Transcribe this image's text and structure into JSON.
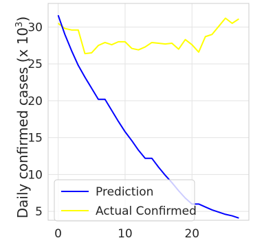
{
  "chart_data": {
    "type": "line",
    "title": "",
    "xlabel": "",
    "ylabel": "Daily confirmed cases (x 10",
    "ylabel_superscript": "3",
    "ylabel_suffix": ")",
    "xlim": [
      -1.5,
      28.5
    ],
    "ylim": [
      3.8,
      33.2
    ],
    "xticks": [
      0,
      10,
      20
    ],
    "xtick_labels": [
      "0",
      "10",
      "20"
    ],
    "yticks": [
      5,
      10,
      15,
      20,
      25,
      30
    ],
    "ytick_labels": [
      "5",
      "10",
      "15",
      "20",
      "25",
      "30"
    ],
    "grid": true,
    "legend_position": "lower-left",
    "series": [
      {
        "name": "Prediction",
        "color": "#0000ff",
        "x": [
          0,
          1,
          2,
          3,
          4,
          5,
          6,
          7,
          8,
          9,
          10,
          11,
          12,
          13,
          14,
          15,
          16,
          17,
          18,
          19,
          20,
          21,
          22,
          23,
          24,
          25,
          26,
          27
        ],
        "y": [
          31.6,
          29.0,
          26.8,
          24.8,
          23.2,
          21.7,
          20.2,
          20.2,
          18.7,
          17.2,
          15.8,
          14.6,
          13.3,
          12.2,
          12.2,
          11.0,
          9.9,
          8.9,
          7.8,
          6.8,
          6.0,
          6.0,
          5.6,
          5.2,
          4.9,
          4.6,
          4.4,
          4.1
        ]
      },
      {
        "name": "Actual Confirmed",
        "color": "#ffff00",
        "x": [
          0,
          1,
          2,
          3,
          4,
          5,
          6,
          7,
          8,
          9,
          10,
          11,
          12,
          13,
          14,
          15,
          16,
          17,
          18,
          19,
          20,
          21,
          22,
          23,
          24,
          25,
          26,
          27
        ],
        "y": [
          30.5,
          29.8,
          29.6,
          29.6,
          26.4,
          26.5,
          27.5,
          27.9,
          27.6,
          28.0,
          28.0,
          27.1,
          26.9,
          27.3,
          27.9,
          27.8,
          27.7,
          27.8,
          27.0,
          28.3,
          27.6,
          26.6,
          28.7,
          29.0,
          30.1,
          31.2,
          30.5,
          31.1
        ]
      }
    ]
  }
}
